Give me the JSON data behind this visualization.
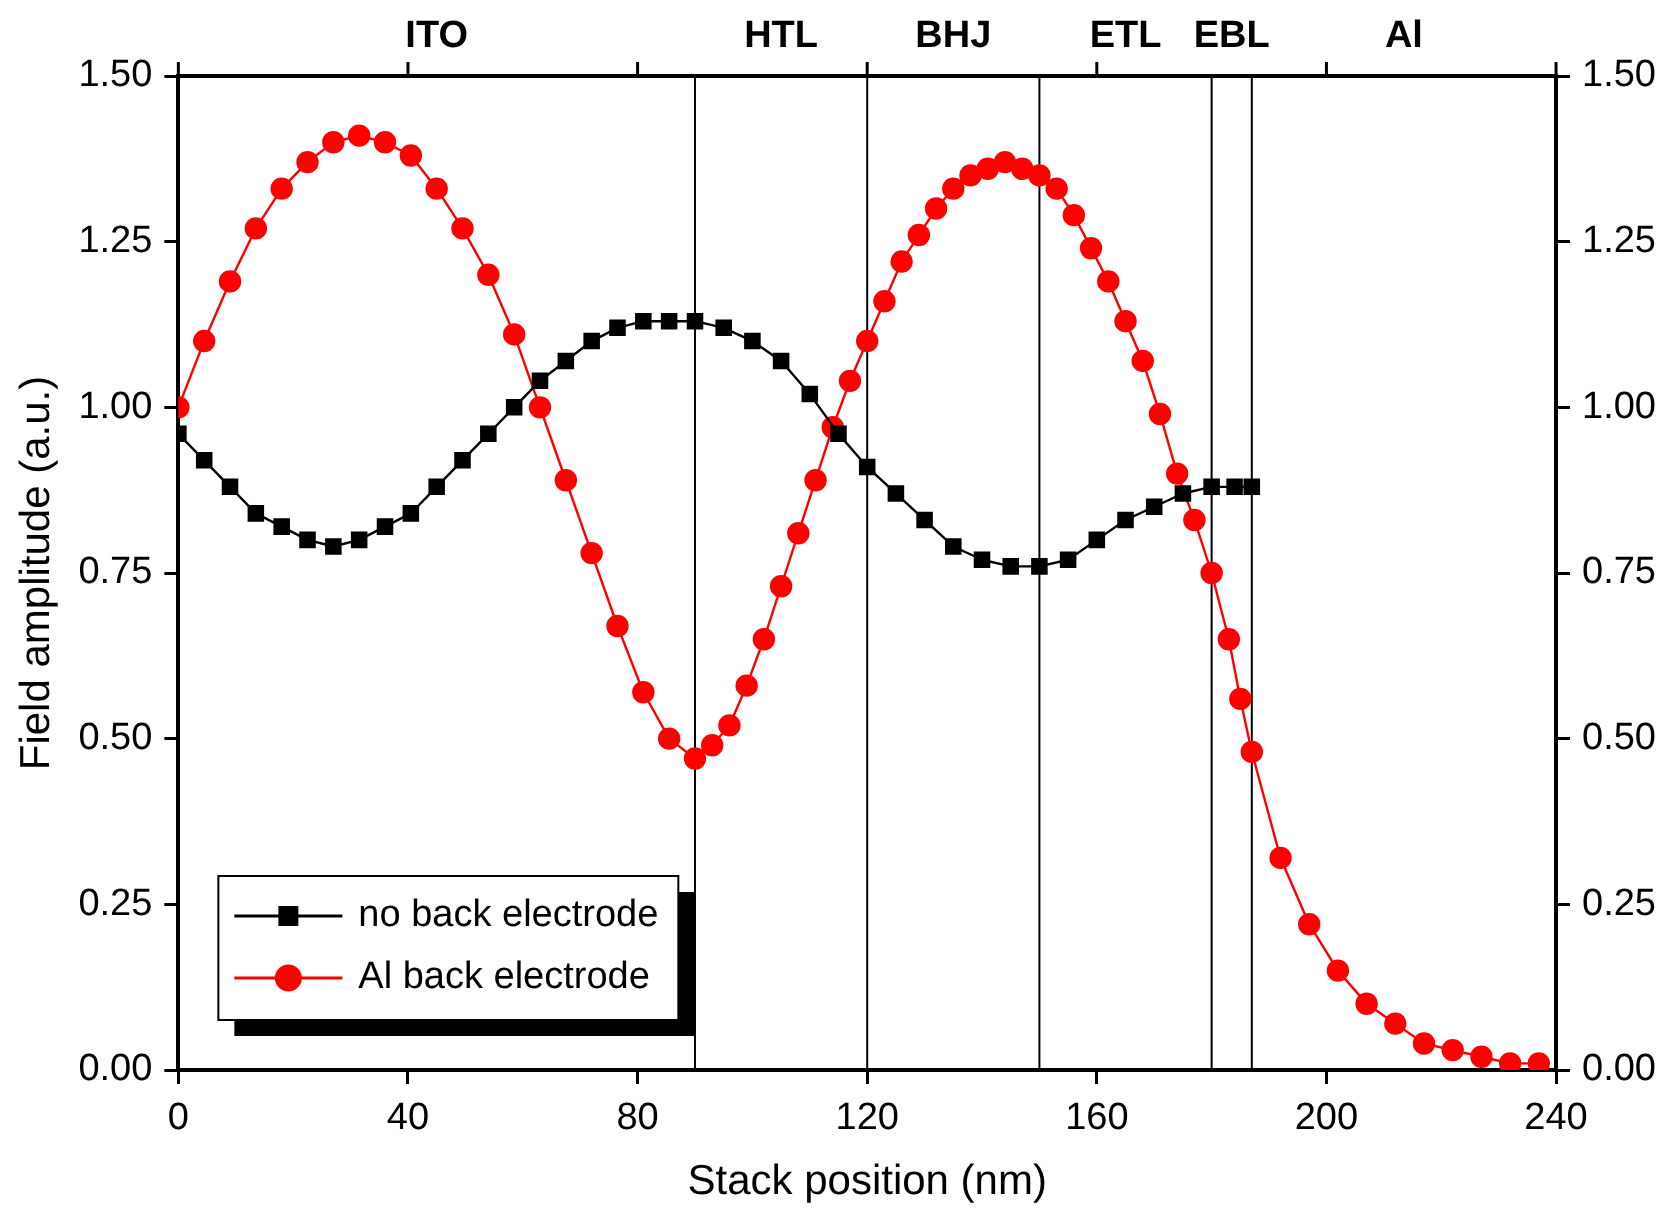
{
  "chart_data": {
    "type": "line",
    "xlabel": "Stack position (nm)",
    "ylabel": "Field amplitude (a.u.)",
    "xlim": [
      0,
      240
    ],
    "xticks": [
      0,
      40,
      80,
      120,
      160,
      200,
      240
    ],
    "ylim": [
      0,
      1.5
    ],
    "yticks": [
      {
        "value": 0,
        "label": "0.00"
      },
      {
        "value": 0.25,
        "label": "0.25"
      },
      {
        "value": 0.5,
        "label": "0.50"
      },
      {
        "value": 0.75,
        "label": "0.75"
      },
      {
        "value": 1,
        "label": "1.00"
      },
      {
        "value": 1.25,
        "label": "1.25"
      },
      {
        "value": 1.5,
        "label": "1.50"
      }
    ],
    "y2lim": [
      0,
      1.5
    ],
    "y2ticks": [
      {
        "value": 0,
        "label": "0.00"
      },
      {
        "value": 0.25,
        "label": "0.25"
      },
      {
        "value": 0.5,
        "label": "0.50"
      },
      {
        "value": 0.75,
        "label": "0.75"
      },
      {
        "value": 1,
        "label": "1.00"
      },
      {
        "value": 1.25,
        "label": "1.25"
      },
      {
        "value": 1.5,
        "label": "1.50"
      }
    ],
    "grid": false,
    "legend": "bottom left",
    "line_style": "solid",
    "series": [
      {
        "name": "no back electrode",
        "color": "#000000",
        "marker": "square",
        "x": [
          0,
          4.5,
          9,
          13.5,
          18,
          22.5,
          27,
          31.5,
          36,
          40.5,
          45,
          49.5,
          54,
          58.5,
          63,
          67.5,
          72,
          76.5,
          81,
          85.5,
          90,
          95,
          100,
          105,
          110,
          115,
          120,
          125,
          130,
          135,
          140,
          145,
          150,
          155,
          160,
          165,
          170,
          175,
          180,
          184,
          187
        ],
        "values": [
          0.96,
          0.92,
          0.88,
          0.84,
          0.82,
          0.8,
          0.79,
          0.8,
          0.82,
          0.84,
          0.88,
          0.92,
          0.96,
          1.0,
          1.04,
          1.07,
          1.1,
          1.12,
          1.13,
          1.13,
          1.13,
          1.12,
          1.1,
          1.07,
          1.02,
          0.96,
          0.91,
          0.87,
          0.83,
          0.79,
          0.77,
          0.76,
          0.76,
          0.77,
          0.8,
          0.83,
          0.85,
          0.87,
          0.88,
          0.88,
          0.88
        ]
      },
      {
        "name": "Al back electrode",
        "color": "#ff0000",
        "marker": "circle",
        "x": [
          0,
          4.5,
          9,
          13.5,
          18,
          22.5,
          27,
          31.5,
          36,
          40.5,
          45,
          49.5,
          54,
          58.5,
          63,
          67.5,
          72,
          76.5,
          81,
          85.5,
          90,
          93,
          96,
          99,
          102,
          105,
          108,
          111,
          114,
          117,
          120,
          123,
          126,
          129,
          132,
          135,
          138,
          141,
          144,
          147,
          150,
          153,
          156,
          159,
          162,
          165,
          168,
          171,
          174,
          177,
          180,
          183,
          185,
          187,
          192,
          197,
          202,
          207,
          212,
          217,
          222,
          227,
          232,
          237
        ],
        "values": [
          1.0,
          1.1,
          1.19,
          1.27,
          1.33,
          1.37,
          1.4,
          1.41,
          1.4,
          1.38,
          1.33,
          1.27,
          1.2,
          1.11,
          1.0,
          0.89,
          0.78,
          0.67,
          0.57,
          0.5,
          0.47,
          0.49,
          0.52,
          0.58,
          0.65,
          0.73,
          0.81,
          0.89,
          0.97,
          1.04,
          1.1,
          1.16,
          1.22,
          1.26,
          1.3,
          1.33,
          1.35,
          1.36,
          1.37,
          1.36,
          1.35,
          1.33,
          1.29,
          1.24,
          1.19,
          1.13,
          1.07,
          0.99,
          0.9,
          0.83,
          0.75,
          0.65,
          0.56,
          0.48,
          0.32,
          0.22,
          0.15,
          0.1,
          0.07,
          0.04,
          0.03,
          0.02,
          0.01,
          0.01
        ]
      }
    ],
    "ref_lines": [
      {
        "axis": "x",
        "value": 90,
        "color": "#000000"
      },
      {
        "axis": "x",
        "value": 120,
        "color": "#000000"
      },
      {
        "axis": "x",
        "value": 150,
        "color": "#000000"
      },
      {
        "axis": "x",
        "value": 180,
        "color": "#000000"
      },
      {
        "axis": "x",
        "value": 187,
        "color": "#000000"
      }
    ],
    "annotations": [
      "ITO",
      "HTL",
      "BHJ",
      "ETL",
      "EBL",
      "Al"
    ]
  }
}
